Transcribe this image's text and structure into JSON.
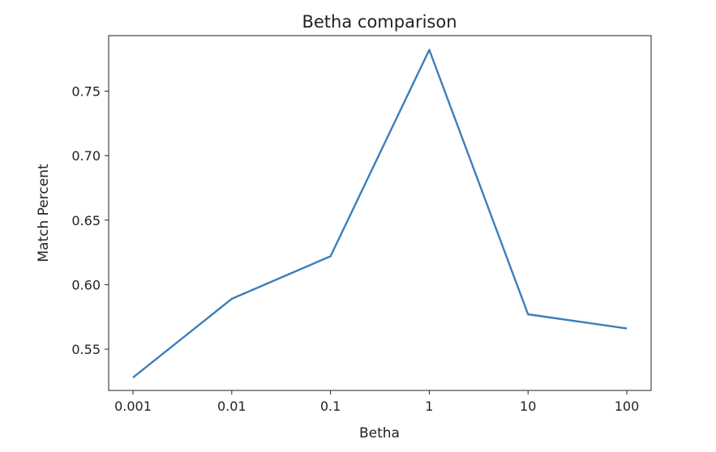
{
  "chart_data": {
    "type": "line",
    "title": "Betha comparison",
    "xlabel": "Betha",
    "ylabel": "Match Percent",
    "categories": [
      "0.001",
      "0.01",
      "0.1",
      "1",
      "10",
      "100"
    ],
    "x": [
      0.001,
      0.01,
      0.1,
      1,
      10,
      100
    ],
    "x_scale": "log",
    "y_ticks": [
      "0.55",
      "0.60",
      "0.65",
      "0.70",
      "0.75"
    ],
    "y_tick_values": [
      0.55,
      0.6,
      0.65,
      0.7,
      0.75
    ],
    "series": [
      {
        "values": [
          0.528,
          0.589,
          0.622,
          0.782,
          0.577,
          0.566
        ],
        "color": "#3b7fba"
      }
    ],
    "ylim": [
      0.518,
      0.793
    ],
    "grid": false,
    "legend": "none"
  }
}
